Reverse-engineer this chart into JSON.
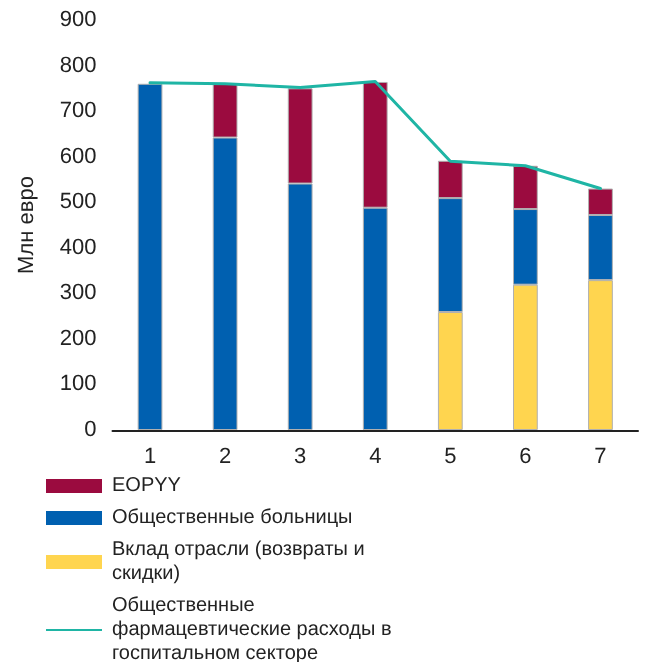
{
  "chart_data": {
    "type": "bar",
    "stacked": true,
    "ylabel": "Млн евро",
    "categories": [
      "1",
      "2",
      "3",
      "4",
      "5",
      "6",
      "7"
    ],
    "ylim": [
      0,
      900
    ],
    "yticks": [
      0,
      100,
      200,
      300,
      400,
      500,
      600,
      700,
      800,
      900
    ],
    "grid": false,
    "legend": "bottom",
    "series": [
      {
        "name": "Вклад отрасли (возвраты и скидки)",
        "color": "#ffd54f",
        "values": [
          null,
          null,
          null,
          null,
          259,
          319,
          329
        ]
      },
      {
        "name": "Общественные больницы",
        "color": "#0060b0",
        "values": [
          760,
          642,
          541,
          488,
          250,
          166,
          143
        ]
      },
      {
        "name": "EOPYY",
        "color": "#9b0b3f",
        "values": [
          null,
          118,
          209,
          276,
          82,
          95,
          58
        ]
      },
      {
        "name": "Общественные фармацевтические расходы в госпитальном секторе",
        "type": "line",
        "color": "#1fb5a5",
        "marker": "none",
        "values": [
          762,
          760,
          752,
          765,
          590,
          580,
          530
        ]
      }
    ]
  }
}
